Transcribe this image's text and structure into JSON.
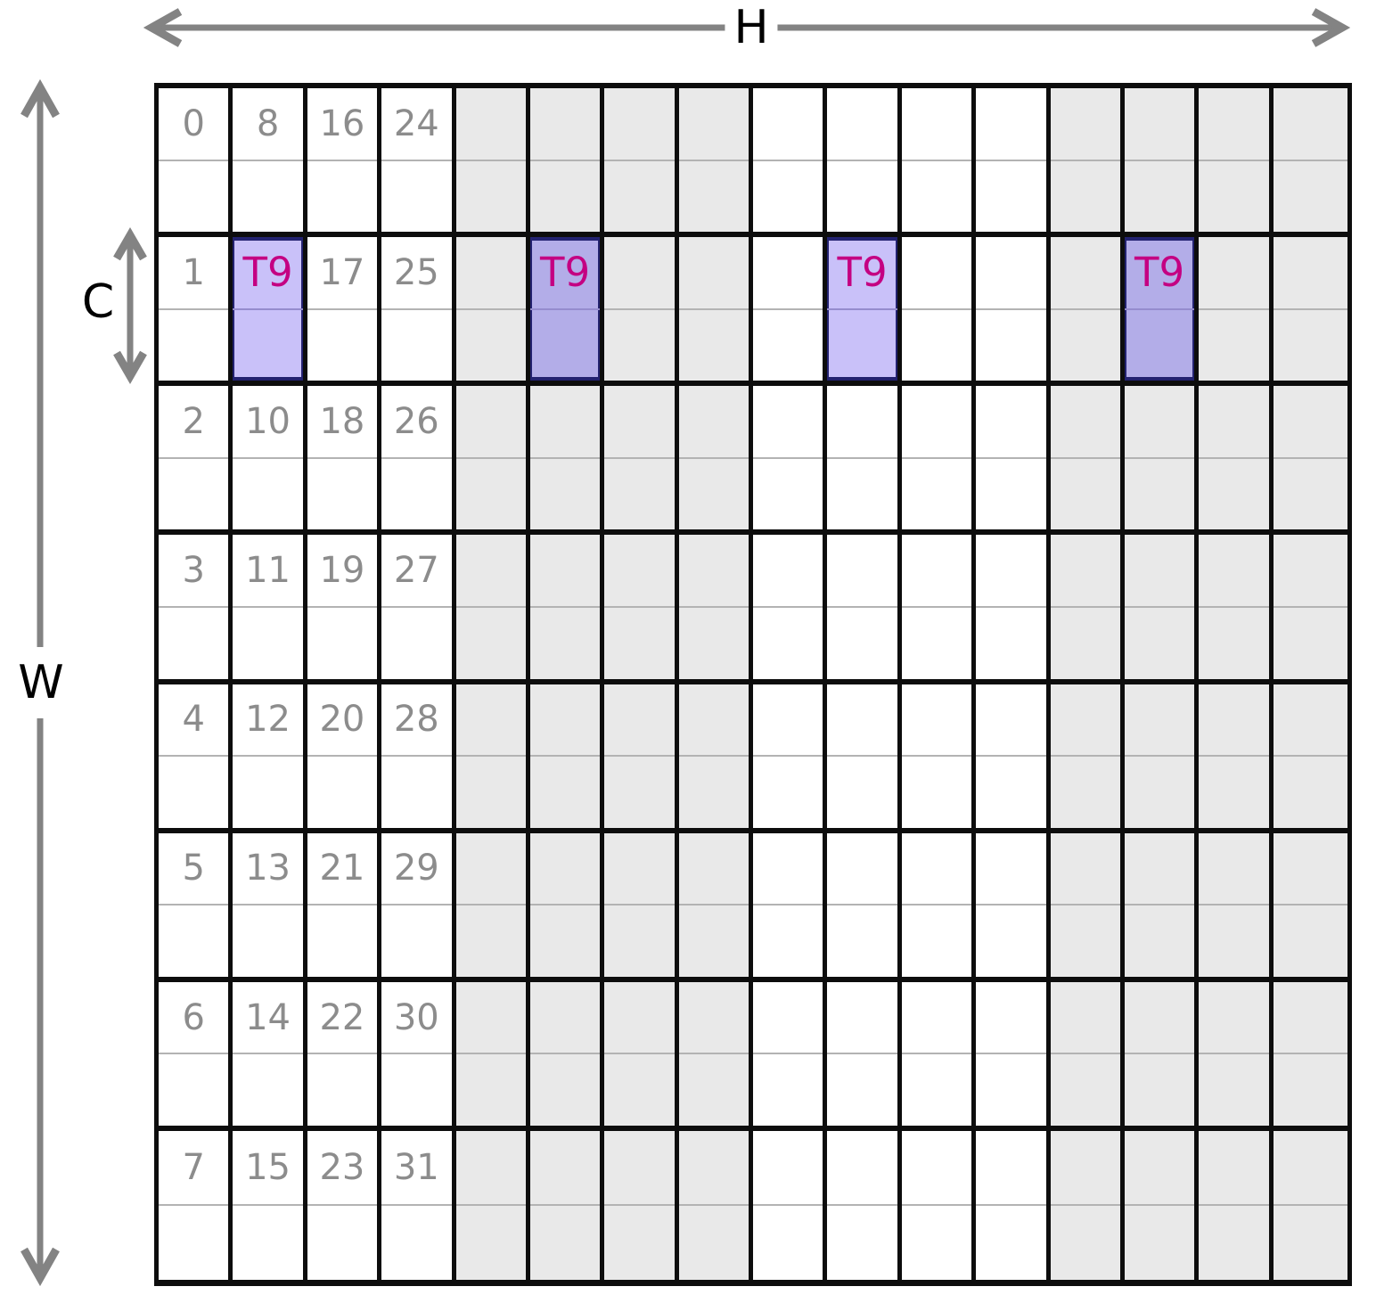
{
  "arrows": {
    "h_label": "H",
    "w_label": "W",
    "c_label": "C"
  },
  "grid": {
    "rows": 8,
    "cols": 16,
    "shaded_col_ranges": [
      [
        4,
        7
      ],
      [
        12,
        15
      ]
    ],
    "highlight_row": 1,
    "highlight_cols": [
      1,
      5,
      9,
      13
    ],
    "thread_label": "T9",
    "cell_labels": [
      [
        "0",
        "8",
        "16",
        "24",
        "",
        "",
        "",
        "",
        "",
        "",
        "",
        "",
        "",
        "",
        "",
        ""
      ],
      [
        "1",
        "T9",
        "17",
        "25",
        "",
        "T9",
        "",
        "",
        "",
        "T9",
        "",
        "",
        "",
        "T9",
        "",
        ""
      ],
      [
        "2",
        "10",
        "18",
        "26",
        "",
        "",
        "",
        "",
        "",
        "",
        "",
        "",
        "",
        "",
        "",
        ""
      ],
      [
        "3",
        "11",
        "19",
        "27",
        "",
        "",
        "",
        "",
        "",
        "",
        "",
        "",
        "",
        "",
        "",
        ""
      ],
      [
        "4",
        "12",
        "20",
        "28",
        "",
        "",
        "",
        "",
        "",
        "",
        "",
        "",
        "",
        "",
        "",
        ""
      ],
      [
        "5",
        "13",
        "21",
        "29",
        "",
        "",
        "",
        "",
        "",
        "",
        "",
        "",
        "",
        "",
        "",
        ""
      ],
      [
        "6",
        "14",
        "22",
        "30",
        "",
        "",
        "",
        "",
        "",
        "",
        "",
        "",
        "",
        "",
        "",
        ""
      ],
      [
        "7",
        "15",
        "23",
        "31",
        "",
        "",
        "",
        "",
        "",
        "",
        "",
        "",
        "",
        "",
        "",
        ""
      ]
    ]
  },
  "colors": {
    "grid_line": "#0d0d0d",
    "divider": "#b3b3b3",
    "shaded_cell": "#e9e9e9",
    "number_text": "#8c8c8c",
    "thread_text": "#c40082",
    "highlight_on_white": "#c9c1f9",
    "highlight_on_gray": "#b3ade8",
    "highlight_edge": "#232270",
    "arrow": "#838383",
    "label_text": "#000000"
  }
}
